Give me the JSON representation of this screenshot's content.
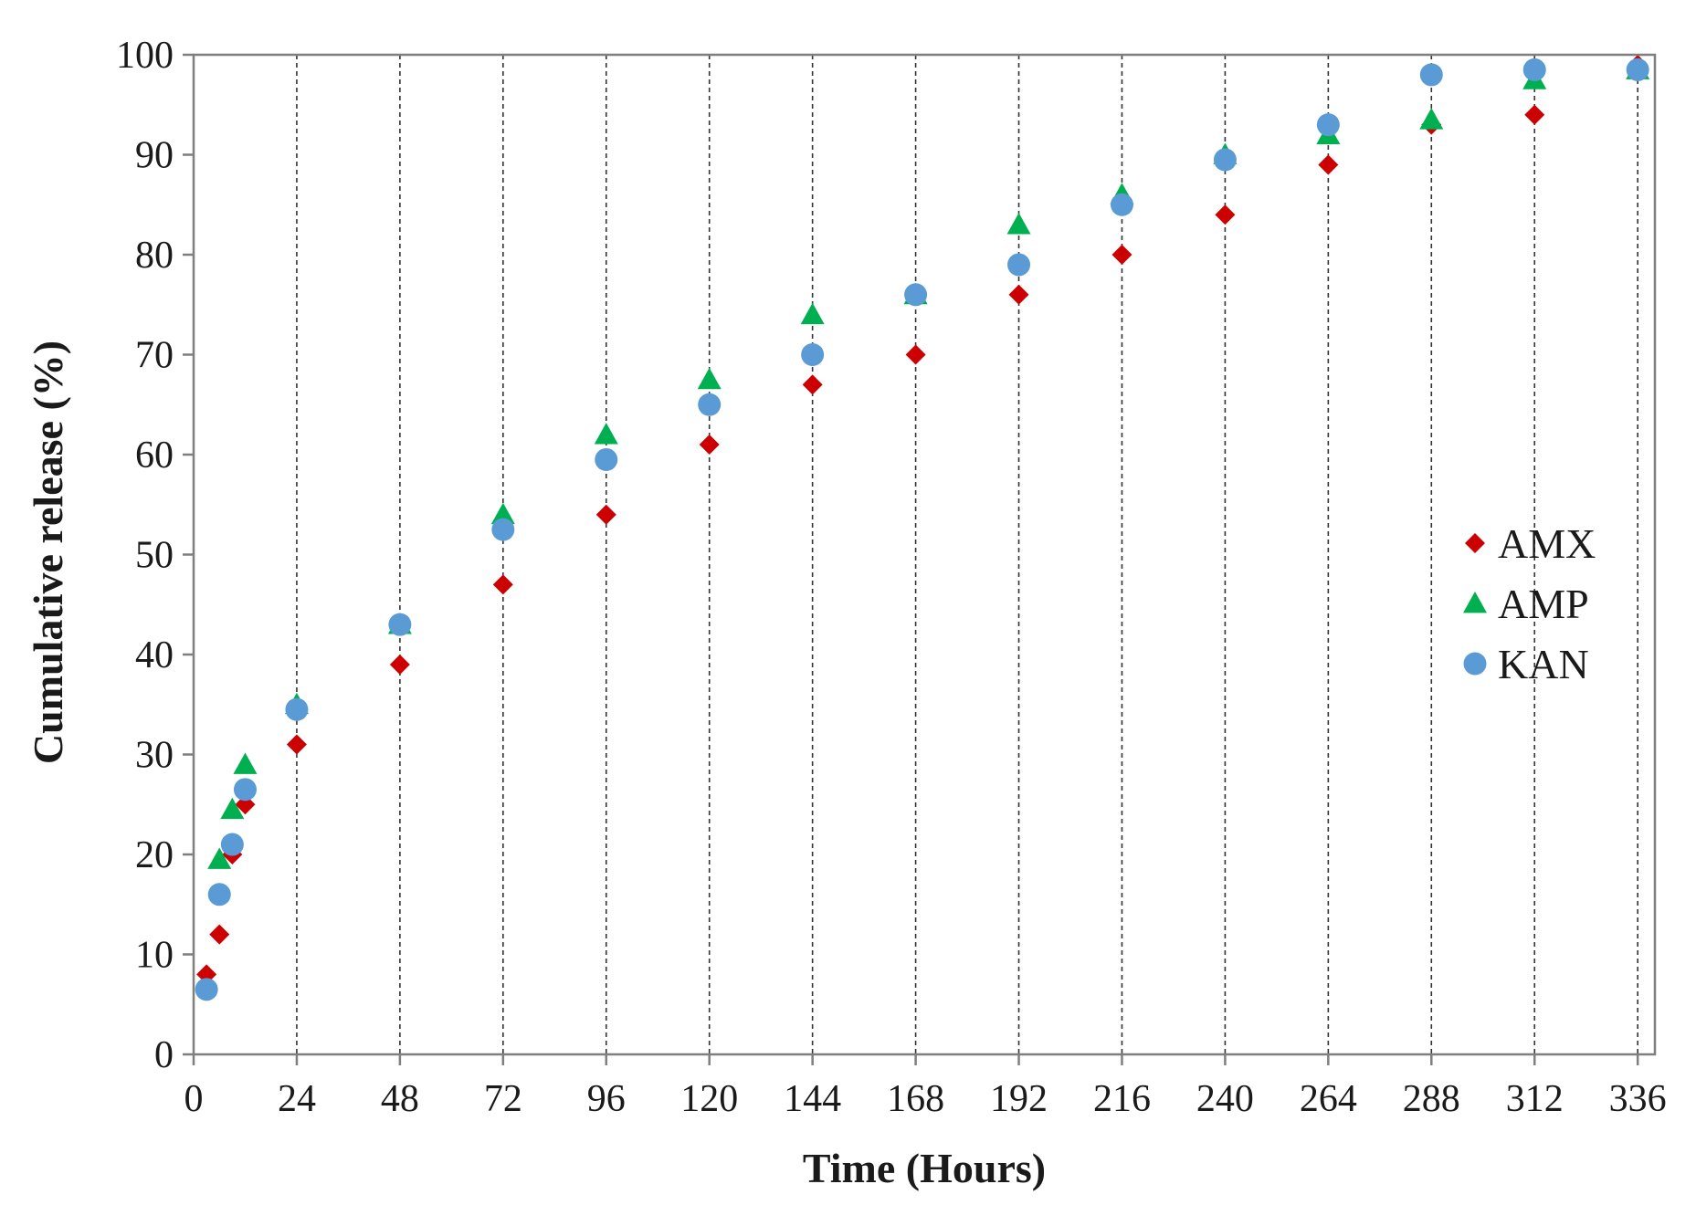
{
  "chart_data": {
    "type": "scatter",
    "title": "",
    "xlabel": "Time (Hours)",
    "ylabel": "Cumulative release (%)",
    "xlim": [
      0,
      340
    ],
    "ylim": [
      0,
      100
    ],
    "xticks": [
      0,
      24,
      48,
      72,
      96,
      120,
      144,
      168,
      192,
      216,
      240,
      264,
      288,
      312,
      336
    ],
    "yticks": [
      0,
      10,
      20,
      30,
      40,
      50,
      60,
      70,
      80,
      90,
      100
    ],
    "x_gridlines": "dashed vertical at each x tick",
    "y_gridlines": false,
    "legend_position": "right",
    "series": [
      {
        "name": "AMX",
        "marker": "diamond",
        "color": "#cc0000",
        "points": [
          [
            3,
            8
          ],
          [
            6,
            12
          ],
          [
            9,
            20
          ],
          [
            12,
            25
          ],
          [
            24,
            31
          ],
          [
            48,
            39
          ],
          [
            72,
            47
          ],
          [
            96,
            54
          ],
          [
            120,
            61
          ],
          [
            144,
            67
          ],
          [
            168,
            70
          ],
          [
            192,
            76
          ],
          [
            216,
            80
          ],
          [
            240,
            84
          ],
          [
            264,
            89
          ],
          [
            288,
            93
          ],
          [
            312,
            94
          ],
          [
            336,
            99
          ]
        ]
      },
      {
        "name": "AMP",
        "marker": "triangle",
        "color": "#00b050",
        "points": [
          [
            6,
            19.5
          ],
          [
            9,
            24.5
          ],
          [
            12,
            29
          ],
          [
            24,
            35
          ],
          [
            48,
            43
          ],
          [
            72,
            54
          ],
          [
            96,
            62
          ],
          [
            120,
            67.5
          ],
          [
            144,
            74
          ],
          [
            168,
            76
          ],
          [
            192,
            83
          ],
          [
            216,
            86
          ],
          [
            240,
            90
          ],
          [
            264,
            92
          ],
          [
            288,
            93.5
          ],
          [
            312,
            97.5
          ],
          [
            336,
            98.5
          ]
        ]
      },
      {
        "name": "KAN",
        "marker": "circle",
        "color": "#5b9bd5",
        "points": [
          [
            3,
            6.5
          ],
          [
            6,
            16
          ],
          [
            9,
            21
          ],
          [
            12,
            26.5
          ],
          [
            24,
            34.5
          ],
          [
            48,
            43
          ],
          [
            72,
            52.5
          ],
          [
            96,
            59.5
          ],
          [
            120,
            65
          ],
          [
            144,
            70
          ],
          [
            168,
            76
          ],
          [
            192,
            79
          ],
          [
            216,
            85
          ],
          [
            240,
            89.5
          ],
          [
            264,
            93
          ],
          [
            288,
            98
          ],
          [
            312,
            98.5
          ],
          [
            336,
            98.5
          ]
        ]
      }
    ]
  }
}
